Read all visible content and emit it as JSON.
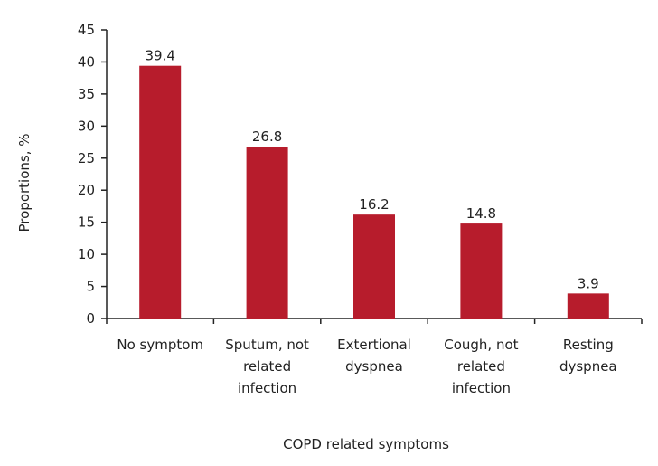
{
  "chart_data": {
    "type": "bar",
    "title": "",
    "xlabel": "COPD related symptoms",
    "ylabel": "Proportions, %",
    "ylim": [
      0,
      45
    ],
    "yticks": [
      0,
      5,
      10,
      15,
      20,
      25,
      30,
      35,
      40,
      45
    ],
    "categories": [
      [
        "No symptom"
      ],
      [
        "Sputum, not",
        "related",
        "infection"
      ],
      [
        "Extertional",
        "dyspnea"
      ],
      [
        "Cough, not",
        "related",
        "infection"
      ],
      [
        "Resting",
        "dyspnea"
      ]
    ],
    "values": [
      39.4,
      26.8,
      16.2,
      14.8,
      3.9
    ],
    "value_labels": [
      "39.4",
      "26.8",
      "16.2",
      "14.8",
      "3.9"
    ],
    "bar_color": "#b71c2c",
    "axis_color": "#222222",
    "grid": false
  }
}
